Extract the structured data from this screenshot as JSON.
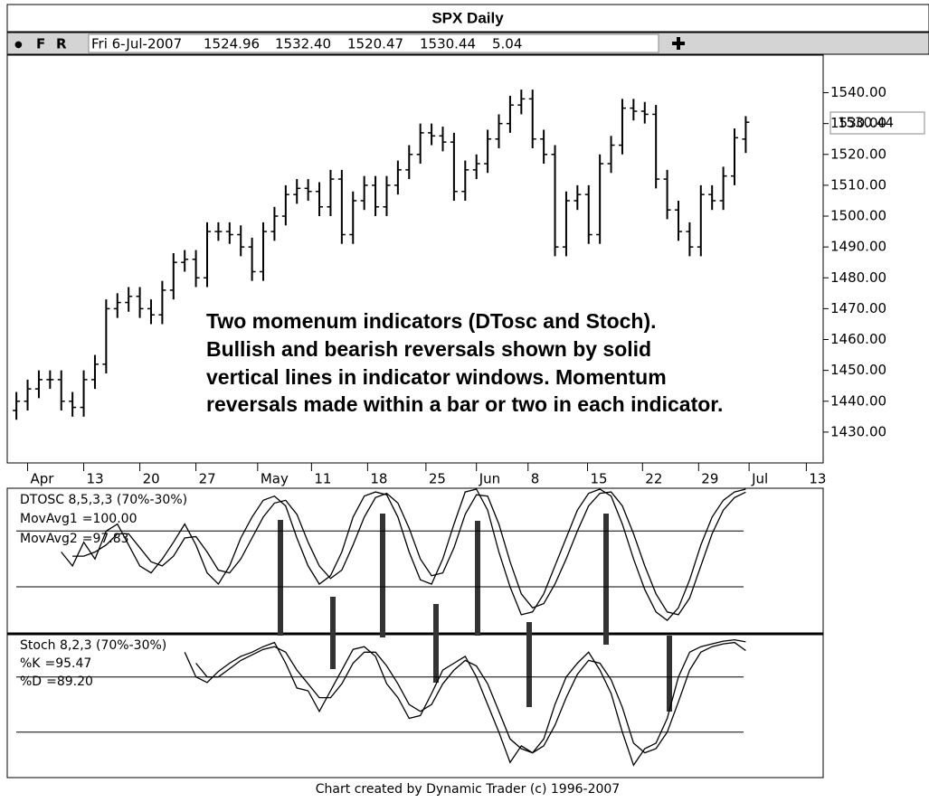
{
  "header": {
    "title": "SPX Daily",
    "toolbar": [
      "●",
      "F",
      "R"
    ],
    "date": "Fri 6-Jul-2007",
    "change": 5.04
  },
  "chart_data": [
    {
      "type": "ohlc",
      "name": "SPX",
      "xlim": [
        -1.3,
        71.9
      ],
      "ylim": [
        1420,
        1551
      ],
      "yticks": [
        {
          "value": 1540,
          "label": "1540.00"
        },
        {
          "value": 1530,
          "label": "1530.00"
        },
        {
          "value": 1520,
          "label": "1520.00"
        },
        {
          "value": 1510,
          "label": "1510.00"
        },
        {
          "value": 1500,
          "label": "1500.00"
        },
        {
          "value": 1490,
          "label": "1490.00"
        },
        {
          "value": 1480,
          "label": "1480.00"
        },
        {
          "value": 1470,
          "label": "1470.00"
        },
        {
          "value": 1460,
          "label": "1460.00"
        },
        {
          "value": 1450,
          "label": "1450.00"
        },
        {
          "value": 1440,
          "label": "1440.00"
        },
        {
          "value": 1430,
          "label": "1430.00"
        }
      ],
      "xticks": [
        {
          "value": 1,
          "label": "Apr"
        },
        {
          "value": 6,
          "label": "13"
        },
        {
          "value": 11,
          "label": "20"
        },
        {
          "value": 16,
          "label": "27"
        },
        {
          "value": 21.5,
          "label": "May"
        },
        {
          "value": 26.3,
          "label": "11"
        },
        {
          "value": 31.3,
          "label": "18"
        },
        {
          "value": 36.5,
          "label": "25"
        },
        {
          "value": 41,
          "label": "Jun"
        },
        {
          "value": 45.6,
          "label": "8"
        },
        {
          "value": 50.9,
          "label": "15"
        },
        {
          "value": 55.8,
          "label": "22"
        },
        {
          "value": 60.8,
          "label": "29"
        },
        {
          "value": 65.3,
          "label": "Jul"
        },
        {
          "value": 70.4,
          "label": "13"
        }
      ],
      "open": [
        1437,
        1440,
        1444,
        1447,
        1447,
        1440,
        1438,
        1447,
        1452,
        1470,
        1472,
        1474,
        1470,
        1468,
        1476,
        1485,
        1486,
        1480,
        1495,
        1495,
        1494,
        1490,
        1482,
        1495,
        1500,
        1507,
        1509,
        1508,
        1503,
        1512,
        1494,
        1505,
        1510,
        1503,
        1510,
        1515,
        1520,
        1527,
        1526,
        1524,
        1508,
        1515,
        1517,
        1525,
        1530,
        1536,
        1538,
        1525,
        1520,
        1490,
        1505,
        1507,
        1494,
        1517,
        1523,
        1535,
        1534,
        1533,
        1512,
        1502,
        1495,
        1490,
        1507,
        1505,
        1513,
        1524.96
      ],
      "high": [
        1443,
        1447,
        1450,
        1450,
        1450,
        1443,
        1450,
        1455,
        1473,
        1475,
        1477,
        1477,
        1473,
        1479,
        1488,
        1489,
        1489,
        1498,
        1498,
        1498,
        1497,
        1493,
        1498,
        1503,
        1510,
        1512,
        1512,
        1511,
        1515,
        1515,
        1508,
        1513,
        1513,
        1513,
        1518,
        1523,
        1530,
        1530,
        1529,
        1527,
        1518,
        1520,
        1528,
        1533,
        1539,
        1541,
        1541,
        1528,
        1523,
        1508,
        1510,
        1510,
        1520,
        1526,
        1538,
        1538,
        1537,
        1536,
        1515,
        1505,
        1498,
        1510,
        1510,
        1516,
        1528.4,
        1532.4
      ],
      "low": [
        1434,
        1437,
        1441,
        1444,
        1437,
        1435,
        1435,
        1444,
        1449,
        1467,
        1469,
        1467,
        1465,
        1465,
        1473,
        1482,
        1477,
        1477,
        1492,
        1491,
        1487,
        1479,
        1479,
        1492,
        1497,
        1504,
        1505,
        1500,
        1500,
        1491,
        1491,
        1502,
        1500,
        1500,
        1507,
        1512,
        1517,
        1523,
        1521,
        1505,
        1505,
        1512,
        1514,
        1522,
        1527,
        1533,
        1522,
        1517,
        1487,
        1487,
        1502,
        1491,
        1491,
        1514,
        1520,
        1531,
        1530,
        1509,
        1499,
        1492,
        1487,
        1487,
        1502,
        1502,
        1510,
        1520.47
      ],
      "close": [
        1440,
        1444,
        1447,
        1447,
        1440,
        1438,
        1447,
        1452,
        1470,
        1472,
        1474,
        1470,
        1468,
        1476,
        1485,
        1486,
        1480,
        1495,
        1495,
        1494,
        1490,
        1482,
        1495,
        1500,
        1507,
        1509,
        1508,
        1503,
        1512,
        1494,
        1505,
        1510,
        1503,
        1510,
        1515,
        1520,
        1527,
        1526,
        1524,
        1508,
        1515,
        1517,
        1525,
        1530,
        1536,
        1538,
        1525,
        1520,
        1490,
        1505,
        1507,
        1494,
        1517,
        1523,
        1535,
        1534,
        1533,
        1512,
        1502,
        1495,
        1490,
        1507,
        1505,
        1513,
        1525.4,
        1530.44
      ],
      "last_labels": {
        "open": "1524.96",
        "high": "1532.40",
        "low": "1520.47",
        "close": "1530.44"
      },
      "color": "#000000"
    },
    {
      "type": "line",
      "title": "DTOSC 8,5,3,3 (70%-30%)",
      "xlim": [
        -1.3,
        71.9
      ],
      "ylim": [
        -3,
        100
      ],
      "levels": [
        70,
        30
      ],
      "series": [
        {
          "name": "MovAvg1",
          "readout": "=100.00",
          "color": "#000000",
          "values": [
            null,
            null,
            null,
            null,
            55,
            45,
            62,
            50,
            70,
            75,
            60,
            45,
            40,
            50,
            62,
            75,
            60,
            40,
            32,
            45,
            65,
            80,
            92,
            95,
            88,
            65,
            45,
            32,
            38,
            55,
            80,
            95,
            98,
            96,
            80,
            55,
            35,
            32,
            50,
            75,
            98,
            100,
            85,
            55,
            30,
            10,
            12,
            25,
            45,
            65,
            85,
            97,
            100,
            95,
            75,
            50,
            28,
            12,
            6,
            15,
            35,
            60,
            80,
            92,
            98,
            100
          ]
        },
        {
          "name": "MovAvg2",
          "readout": "=97.83",
          "color": "#000000",
          "values": [
            null,
            null,
            null,
            null,
            null,
            52,
            52,
            55,
            60,
            68,
            68,
            58,
            48,
            45,
            52,
            65,
            66,
            55,
            42,
            40,
            50,
            65,
            80,
            90,
            92,
            82,
            62,
            45,
            36,
            42,
            60,
            80,
            94,
            97,
            90,
            72,
            50,
            38,
            40,
            58,
            82,
            96,
            95,
            75,
            48,
            25,
            15,
            18,
            32,
            50,
            70,
            88,
            97,
            98,
            88,
            68,
            45,
            25,
            12,
            10,
            22,
            45,
            68,
            85,
            94,
            97.83
          ]
        }
      ]
    },
    {
      "type": "line",
      "title": "Stoch 8,2,3 (70%-30%)",
      "xlim": [
        -1.3,
        71.9
      ],
      "ylim": [
        -3,
        100
      ],
      "levels": [
        70,
        30
      ],
      "series": [
        {
          "name": "%K",
          "readout": "=95.47",
          "color": "#000000",
          "values": [
            null,
            null,
            null,
            null,
            null,
            null,
            null,
            null,
            null,
            null,
            null,
            null,
            null,
            null,
            null,
            88,
            70,
            66,
            74,
            80,
            85,
            88,
            92,
            95,
            80,
            62,
            60,
            45,
            60,
            75,
            90,
            92,
            85,
            65,
            55,
            40,
            42,
            58,
            75,
            80,
            85,
            70,
            50,
            30,
            8,
            20,
            15,
            25,
            50,
            70,
            80,
            88,
            75,
            58,
            30,
            6,
            18,
            22,
            40,
            70,
            88,
            92,
            94,
            96,
            97,
            95.47
          ]
        },
        {
          "name": "%D",
          "readout": "=89.20",
          "color": "#000000",
          "values": [
            null,
            null,
            null,
            null,
            null,
            null,
            null,
            null,
            null,
            null,
            null,
            null,
            null,
            null,
            null,
            null,
            80,
            70,
            70,
            76,
            82,
            86,
            90,
            92,
            88,
            75,
            65,
            55,
            55,
            65,
            80,
            88,
            88,
            78,
            65,
            50,
            45,
            50,
            65,
            75,
            82,
            78,
            65,
            45,
            25,
            18,
            15,
            20,
            35,
            55,
            72,
            82,
            80,
            68,
            48,
            22,
            15,
            18,
            30,
            52,
            75,
            88,
            92,
            94,
            95,
            89.2
          ]
        }
      ]
    }
  ],
  "annotation": [
    "Two momenum indicators (DTosc and Stoch).",
    "Bullish and bearish reversals shown by solid",
    "vertical lines in indicator windows. Momentum",
    "reversals made within a bar or two in each indicator."
  ],
  "footer": "Chart created by Dynamic Trader  (c) 1996-2007"
}
